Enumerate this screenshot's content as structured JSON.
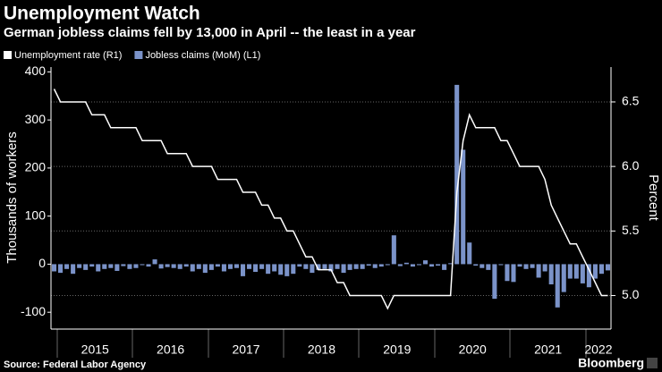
{
  "chart_data": {
    "type": "bar-line",
    "title": "Unemployment Watch",
    "subtitle": "German jobless claims fell by 13,000 in April -- the least in a year",
    "ylabel": "Thousands of workers",
    "y2label": "Percent",
    "source": "Source: Federal Labor Agency",
    "brand": "Bloomberg",
    "categories": [
      null,
      null,
      null,
      null,
      null,
      null,
      null,
      "2015",
      null,
      null,
      null,
      null,
      null,
      null,
      null,
      null,
      null,
      null,
      null,
      "2016",
      null,
      null,
      null,
      null,
      null,
      null,
      null,
      null,
      null,
      null,
      null,
      "2017",
      null,
      null,
      null,
      null,
      null,
      null,
      null,
      null,
      null,
      null,
      null,
      "2018",
      null,
      null,
      null,
      null,
      null,
      null,
      null,
      null,
      null,
      null,
      null,
      "2019",
      null,
      null,
      null,
      null,
      null,
      null,
      null,
      null,
      null,
      null,
      null,
      "2020",
      null,
      null,
      null,
      null,
      null,
      null,
      null,
      null,
      null,
      null,
      null,
      "2021",
      null,
      null,
      null,
      null,
      null,
      null,
      null,
      "2022",
      null
    ],
    "series": [
      {
        "name": "Unemployment rate (R1)",
        "type": "line",
        "axis": "y2",
        "color": "#ffffff",
        "values": [
          6.6,
          6.5,
          6.5,
          6.5,
          6.5,
          6.5,
          6.4,
          6.4,
          6.4,
          6.3,
          6.3,
          6.3,
          6.3,
          6.3,
          6.2,
          6.2,
          6.2,
          6.2,
          6.1,
          6.1,
          6.1,
          6.1,
          6.0,
          6.0,
          6.0,
          6.0,
          5.9,
          5.9,
          5.9,
          5.9,
          5.8,
          5.8,
          5.8,
          5.7,
          5.7,
          5.6,
          5.6,
          5.5,
          5.5,
          5.4,
          5.3,
          5.3,
          5.2,
          5.2,
          5.2,
          5.1,
          5.1,
          5.0,
          5.0,
          5.0,
          5.0,
          5.0,
          5.0,
          4.9,
          5.0,
          5.0,
          5.0,
          5.0,
          5.0,
          5.0,
          5.0,
          5.0,
          5.0,
          5.0,
          5.8,
          6.2,
          6.4,
          6.3,
          6.3,
          6.3,
          6.3,
          6.2,
          6.2,
          6.1,
          6.0,
          6.0,
          6.0,
          6.0,
          5.9,
          5.7,
          5.6,
          5.5,
          5.4,
          5.4,
          5.3,
          5.2,
          5.1,
          5.0,
          5.0
        ]
      },
      {
        "name": "Jobless claims (MoM) (L1)",
        "type": "bar",
        "color": "#7b93c9",
        "values": [
          -15,
          -18,
          -10,
          -20,
          -8,
          -12,
          -5,
          -15,
          -10,
          -8,
          -14,
          -4,
          -10,
          -8,
          -2,
          -5,
          10,
          -9,
          -6,
          -8,
          -10,
          -5,
          -15,
          -10,
          -18,
          -12,
          -5,
          -15,
          -10,
          -8,
          -25,
          -10,
          -16,
          -10,
          -20,
          -15,
          -22,
          -25,
          -20,
          -5,
          -10,
          -18,
          -12,
          -10,
          -15,
          -10,
          -18,
          -12,
          -10,
          -10,
          -3,
          -8,
          -5,
          -2,
          60,
          -4,
          3,
          -5,
          -2,
          8,
          -5,
          -3,
          -12,
          2,
          373,
          238,
          45,
          -3,
          -8,
          -12,
          -72,
          -2,
          -35,
          -37,
          -5,
          -10,
          -8,
          -28,
          -15,
          -42,
          -90,
          -58,
          -30,
          -30,
          -40,
          -48,
          -30,
          -20,
          -13
        ]
      }
    ],
    "ylim": [
      -135,
      410
    ],
    "yticks": [
      -100,
      0,
      100,
      200,
      300,
      400
    ],
    "y2lim": [
      4.74,
      6.77
    ],
    "y2ticks": [
      {
        "value": 5,
        "label": "5.0"
      },
      5.5,
      {
        "value": 6,
        "label": "6.0"
      },
      6.5
    ],
    "grid": true
  }
}
